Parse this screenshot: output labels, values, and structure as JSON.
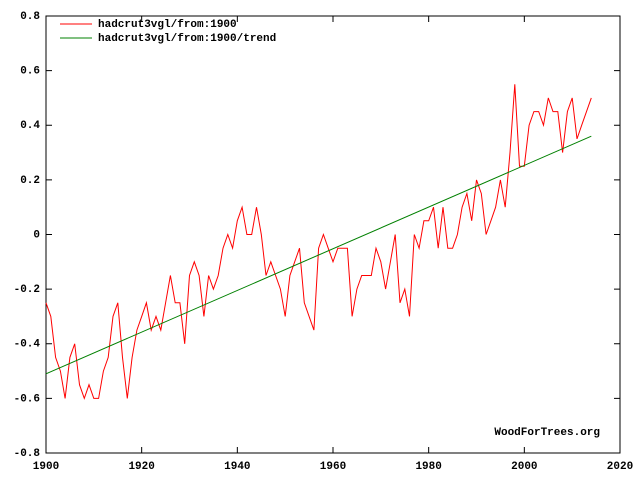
{
  "chart_data": {
    "type": "line",
    "annotation": "WoodForTrees.org",
    "xlim": [
      1900,
      2020
    ],
    "xticks": [
      1900,
      1920,
      1940,
      1960,
      1980,
      2000,
      2020
    ],
    "ylim": [
      -0.8,
      0.8
    ],
    "yticks": [
      -0.8,
      -0.6,
      -0.4,
      -0.2,
      0,
      0.2,
      0.4,
      0.6,
      0.8
    ],
    "grid": false,
    "legend": "top-left",
    "series": [
      {
        "name": "hadcrut3vgl/from:1900",
        "color": "#ff0000",
        "x": [
          1900,
          1901,
          1902,
          1903,
          1904,
          1905,
          1906,
          1907,
          1908,
          1909,
          1910,
          1911,
          1912,
          1913,
          1914,
          1915,
          1916,
          1917,
          1918,
          1919,
          1920,
          1921,
          1922,
          1923,
          1924,
          1925,
          1926,
          1927,
          1928,
          1929,
          1930,
          1931,
          1932,
          1933,
          1934,
          1935,
          1936,
          1937,
          1938,
          1939,
          1940,
          1941,
          1942,
          1943,
          1944,
          1945,
          1946,
          1947,
          1948,
          1949,
          1950,
          1951,
          1952,
          1953,
          1954,
          1955,
          1956,
          1957,
          1958,
          1959,
          1960,
          1961,
          1962,
          1963,
          1964,
          1965,
          1966,
          1967,
          1968,
          1969,
          1970,
          1971,
          1972,
          1973,
          1974,
          1975,
          1976,
          1977,
          1978,
          1979,
          1980,
          1981,
          1982,
          1983,
          1984,
          1985,
          1986,
          1987,
          1988,
          1989,
          1990,
          1991,
          1992,
          1993,
          1994,
          1995,
          1996,
          1997,
          1998,
          1999,
          2000,
          2001,
          2002,
          2003,
          2004,
          2005,
          2006,
          2007,
          2008,
          2009,
          2010,
          2011,
          2012,
          2013,
          2014
        ],
        "values": [
          -0.25,
          -0.3,
          -0.45,
          -0.5,
          -0.6,
          -0.45,
          -0.4,
          -0.55,
          -0.6,
          -0.55,
          -0.6,
          -0.6,
          -0.5,
          -0.45,
          -0.3,
          -0.25,
          -0.45,
          -0.6,
          -0.45,
          -0.35,
          -0.3,
          -0.25,
          -0.35,
          -0.3,
          -0.35,
          -0.25,
          -0.15,
          -0.25,
          -0.25,
          -0.4,
          -0.15,
          -0.1,
          -0.15,
          -0.3,
          -0.15,
          -0.2,
          -0.15,
          -0.05,
          0,
          -0.05,
          0.05,
          0.1,
          0,
          0,
          0.1,
          0,
          -0.15,
          -0.1,
          -0.15,
          -0.2,
          -0.3,
          -0.15,
          -0.1,
          -0.05,
          -0.25,
          -0.3,
          -0.35,
          -0.05,
          0,
          -0.05,
          -0.1,
          -0.05,
          -0.05,
          -0.05,
          -0.3,
          -0.2,
          -0.15,
          -0.15,
          -0.15,
          -0.05,
          -0.1,
          -0.2,
          -0.1,
          0,
          -0.25,
          -0.2,
          -0.3,
          0,
          -0.05,
          0.05,
          0.05,
          0.1,
          -0.05,
          0.1,
          -0.05,
          -0.05,
          0,
          0.1,
          0.15,
          0.05,
          0.2,
          0.15,
          0,
          0.05,
          0.1,
          0.2,
          0.1,
          0.3,
          0.55,
          0.25,
          0.25,
          0.4,
          0.45,
          0.45,
          0.4,
          0.5,
          0.45,
          0.45,
          0.3,
          0.45,
          0.5,
          0.35,
          0.4,
          0.45,
          0.5
        ]
      },
      {
        "name": "hadcrut3vgl/from:1900/trend",
        "color": "#008000",
        "x": [
          1900,
          2014
        ],
        "values": [
          -0.51,
          0.36
        ]
      }
    ]
  }
}
